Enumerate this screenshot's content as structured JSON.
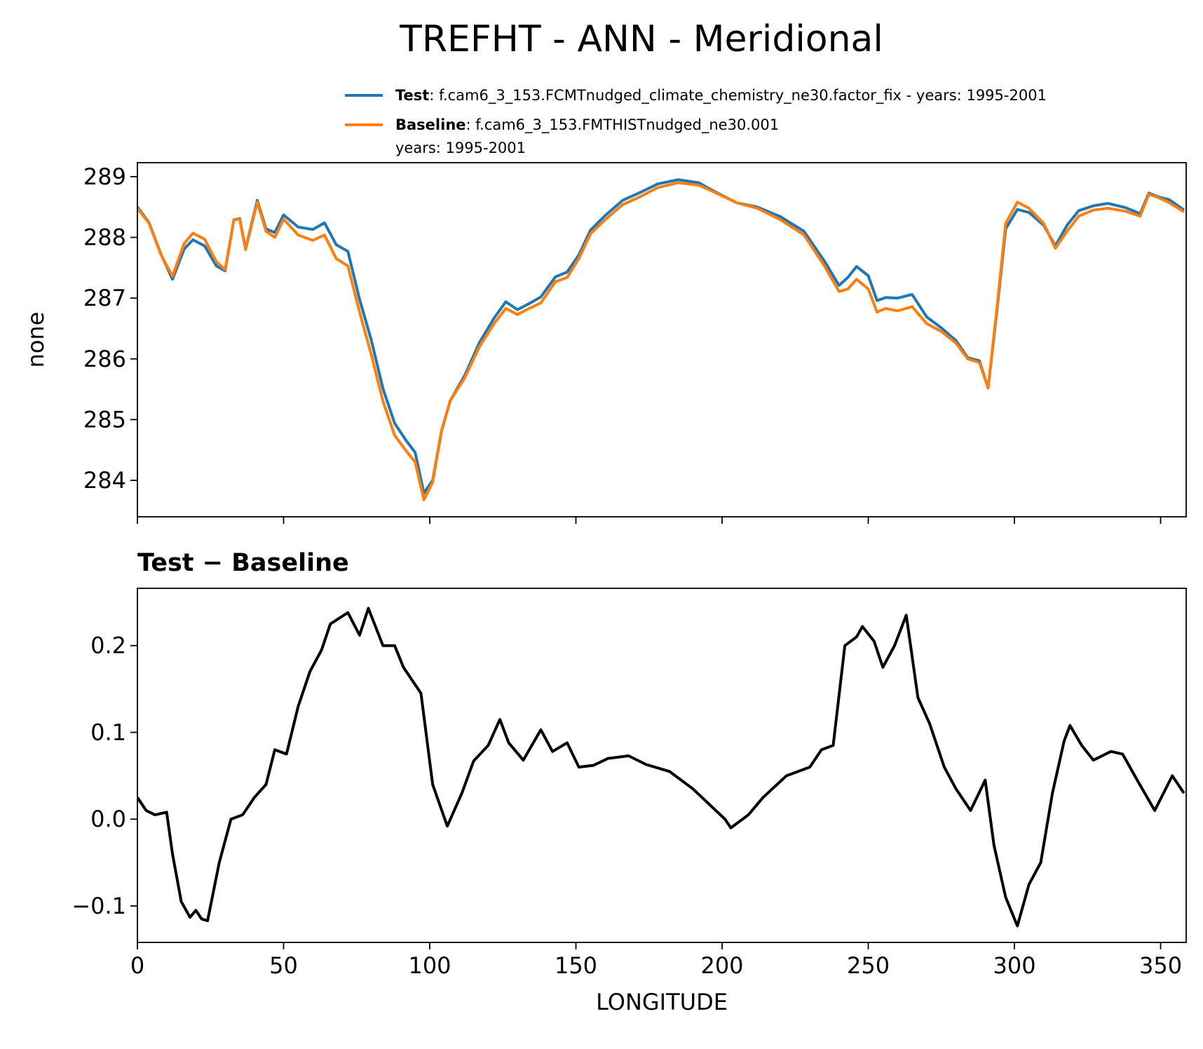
{
  "chart_data": [
    {
      "type": "line",
      "title": "TREFHT - ANN - Meridional",
      "ylabel": "none",
      "x": [
        0,
        4,
        8,
        12,
        16,
        19,
        23,
        27,
        30,
        33,
        35,
        37,
        41,
        44,
        47,
        50,
        55,
        60,
        64,
        68,
        72,
        76,
        80,
        84,
        88,
        92,
        95,
        98,
        101,
        104,
        107,
        112,
        117,
        122,
        126,
        130,
        134,
        138,
        143,
        147,
        151,
        155,
        160,
        166,
        172,
        178,
        185,
        192,
        198,
        205,
        212,
        220,
        228,
        235,
        240,
        243,
        246,
        250,
        253,
        256,
        260,
        265,
        270,
        275,
        280,
        284,
        288,
        291,
        294,
        297,
        301,
        305,
        310,
        314,
        318,
        322,
        327,
        332,
        338,
        343,
        346,
        349,
        353,
        358
      ],
      "series": [
        {
          "name": "Test",
          "description": [
            ": f.cam6_3_153.FCMTnudged_climate_chemistry_ne30.factor_fix - years: 1995-2001"
          ],
          "color": "#1f77b4",
          "values": [
            288.5,
            288.24,
            287.73,
            287.31,
            287.81,
            287.96,
            287.86,
            287.53,
            287.45,
            288.29,
            288.31,
            287.81,
            288.61,
            288.14,
            288.08,
            288.37,
            288.17,
            288.13,
            288.24,
            287.88,
            287.77,
            286.98,
            286.31,
            285.51,
            284.94,
            284.65,
            284.46,
            283.79,
            284.0,
            284.81,
            285.31,
            285.73,
            286.27,
            286.67,
            286.94,
            286.81,
            286.91,
            287.02,
            287.35,
            287.43,
            287.71,
            288.12,
            288.36,
            288.61,
            288.74,
            288.88,
            288.95,
            288.9,
            288.74,
            288.57,
            288.5,
            288.34,
            288.1,
            287.61,
            287.21,
            287.34,
            287.52,
            287.37,
            286.96,
            287.01,
            287.0,
            287.06,
            286.69,
            286.51,
            286.3,
            286.02,
            285.97,
            285.52,
            286.78,
            288.14,
            288.46,
            288.41,
            288.2,
            287.86,
            288.2,
            288.44,
            288.52,
            288.56,
            288.49,
            288.39,
            288.73,
            288.67,
            288.62,
            288.45
          ]
        },
        {
          "name": "Baseline",
          "description": [
            ": f.cam6_3_153.FMTHISTnudged_ne30.001",
            "years: 1995-2001"
          ],
          "color": "#ff7f0e",
          "values": [
            288.48,
            288.23,
            287.72,
            287.36,
            287.9,
            288.07,
            287.97,
            287.6,
            287.47,
            288.29,
            288.3,
            287.8,
            288.58,
            288.1,
            288.0,
            288.3,
            288.04,
            287.95,
            288.04,
            287.65,
            287.53,
            286.77,
            286.07,
            285.3,
            284.74,
            284.48,
            284.3,
            283.68,
            283.97,
            284.8,
            285.31,
            285.69,
            286.2,
            286.58,
            286.83,
            286.73,
            286.83,
            286.92,
            287.27,
            287.34,
            287.65,
            288.06,
            288.29,
            288.54,
            288.67,
            288.82,
            288.9,
            288.86,
            288.73,
            288.57,
            288.48,
            288.29,
            288.04,
            287.53,
            287.11,
            287.15,
            287.31,
            287.15,
            286.77,
            286.83,
            286.79,
            286.86,
            286.58,
            286.45,
            286.26,
            286.0,
            285.94,
            285.52,
            286.83,
            288.23,
            288.58,
            288.48,
            288.23,
            287.82,
            288.1,
            288.35,
            288.45,
            288.48,
            288.43,
            288.35,
            288.71,
            288.66,
            288.57,
            288.42
          ]
        }
      ],
      "xlim": [
        0,
        358.75
      ],
      "xticks": [
        0,
        50,
        100,
        150,
        200,
        250,
        300,
        350
      ],
      "xticklabels": false,
      "ylim": [
        283.4,
        289.23
      ],
      "yticks": [
        284,
        285,
        286,
        287,
        288,
        289
      ],
      "legend": "upper right"
    },
    {
      "type": "line",
      "subtitle": "Test − Baseline",
      "xlabel": "LONGITUDE",
      "x": [
        0,
        3,
        6,
        10,
        12,
        15,
        18,
        20,
        22,
        24,
        28,
        32,
        36,
        40,
        44,
        47,
        51,
        55,
        59,
        63,
        66,
        72,
        76,
        79,
        84,
        88,
        91,
        97,
        101,
        106,
        111,
        115,
        120,
        124,
        127,
        132,
        138,
        142,
        147,
        151,
        156,
        161,
        168,
        174,
        182,
        190,
        201,
        203,
        209,
        214,
        222,
        230,
        234,
        238,
        242,
        246,
        248,
        252,
        255,
        259,
        263,
        267,
        271,
        276,
        280,
        285,
        290,
        293,
        297,
        301,
        305,
        309,
        313,
        317,
        319,
        323,
        327,
        333,
        337,
        342,
        348,
        354,
        358
      ],
      "series": [
        {
          "color": "#000000",
          "values": [
            0.025,
            0.01,
            0.005,
            0.008,
            -0.04,
            -0.095,
            -0.113,
            -0.105,
            -0.115,
            -0.117,
            -0.05,
            0.0,
            0.005,
            0.025,
            0.04,
            0.08,
            0.075,
            0.13,
            0.17,
            0.195,
            0.225,
            0.238,
            0.212,
            0.243,
            0.2,
            0.2,
            0.175,
            0.145,
            0.04,
            -0.008,
            0.03,
            0.067,
            0.085,
            0.115,
            0.088,
            0.068,
            0.103,
            0.078,
            0.088,
            0.06,
            0.062,
            0.07,
            0.073,
            0.063,
            0.055,
            0.035,
            0.0,
            -0.01,
            0.005,
            0.025,
            0.05,
            0.06,
            0.08,
            0.085,
            0.2,
            0.21,
            0.222,
            0.205,
            0.175,
            0.2,
            0.235,
            0.14,
            0.11,
            0.06,
            0.035,
            0.01,
            0.045,
            -0.03,
            -0.09,
            -0.123,
            -0.075,
            -0.05,
            0.03,
            0.09,
            0.108,
            0.085,
            0.068,
            0.078,
            0.075,
            0.045,
            0.01,
            0.05,
            0.03
          ]
        }
      ],
      "xlim": [
        0,
        358.75
      ],
      "xticks": [
        0,
        50,
        100,
        150,
        200,
        250,
        300,
        350
      ],
      "xticklabels": true,
      "ylim": [
        -0.142,
        0.266
      ],
      "yticks": [
        {
          "value": -0.1,
          "label": "−0.1"
        },
        {
          "value": 0,
          "label": "0.0"
        },
        0.1,
        0.2
      ]
    }
  ]
}
